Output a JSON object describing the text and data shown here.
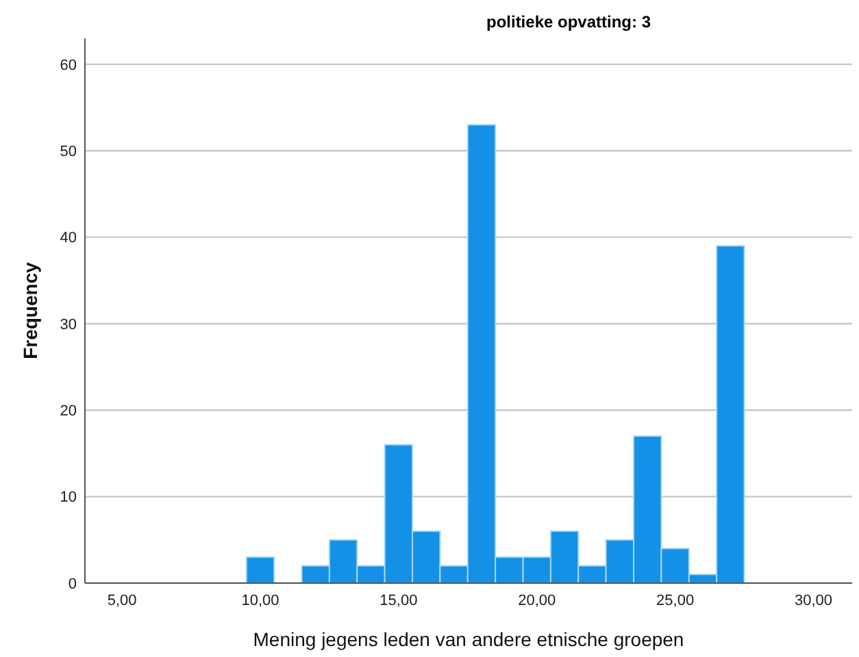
{
  "chart_data": {
    "type": "histogram",
    "title": "politieke opvatting: 3",
    "xlabel": "Mening jegens leden van andere etnische groepen",
    "ylabel": "Frequency",
    "bins": [
      9.5,
      10.5,
      11.5,
      12.5,
      13.5,
      14.5,
      15.5,
      16.5,
      17.5,
      18.5,
      19.5,
      20.5,
      21.5,
      22.5,
      23.5,
      24.5,
      25.5,
      26.5,
      27.5
    ],
    "values": [
      3,
      0,
      2,
      5,
      2,
      16,
      6,
      2,
      53,
      3,
      3,
      6,
      2,
      5,
      17,
      4,
      1,
      39
    ],
    "color": "#1491e6",
    "xlim": [
      3.66,
      31.4
    ],
    "xticks": [
      {
        "value": 5,
        "label": "5,00"
      },
      {
        "value": 10,
        "label": "10,00"
      },
      {
        "value": 15,
        "label": "15,00"
      },
      {
        "value": 20,
        "label": "20,00"
      },
      {
        "value": 25,
        "label": "25,00"
      },
      {
        "value": 30,
        "label": "30,00"
      }
    ],
    "ylim": [
      0,
      63
    ],
    "yticks": [
      0,
      10,
      20,
      30,
      40,
      50,
      60
    ],
    "grid": "y"
  }
}
